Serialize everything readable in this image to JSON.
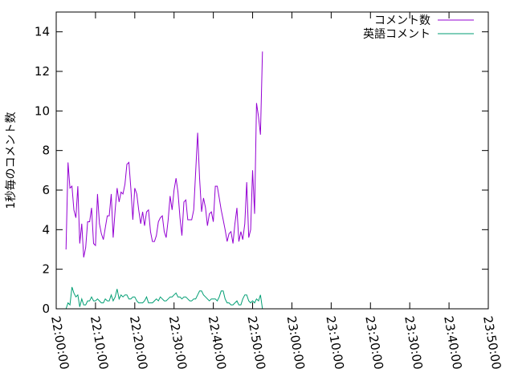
{
  "chart_data": {
    "type": "line",
    "title": "",
    "xlabel": "",
    "ylabel": "1秒毎のコメント数",
    "x_tick_labels": [
      "22:00:00",
      "22:10:00",
      "22:20:00",
      "22:30:00",
      "22:40:00",
      "22:50:00",
      "23:00:00",
      "23:10:00",
      "23:20:00",
      "23:30:00",
      "23:40:00",
      "23:50:00"
    ],
    "x_start": "22:00:00",
    "x_interval_seconds": 30,
    "x_range_minutes": [
      0,
      110
    ],
    "ylim": [
      0,
      15
    ],
    "y_ticks": [
      0,
      2,
      4,
      6,
      8,
      10,
      12,
      14
    ],
    "grid": false,
    "legend_position": "top-right",
    "series": [
      {
        "name": "コメント数",
        "color": "#9400d3",
        "values": [
          3.0,
          7.4,
          6.1,
          6.2,
          5.0,
          4.6,
          6.2,
          3.3,
          4.3,
          2.6,
          3.1,
          4.4,
          4.4,
          5.1,
          3.3,
          3.2,
          5.8,
          4.3,
          3.8,
          3.5,
          4.1,
          4.7,
          4.7,
          5.8,
          3.6,
          5.0,
          6.1,
          5.4,
          5.9,
          5.8,
          6.3,
          7.3,
          7.4,
          6.1,
          4.5,
          6.1,
          5.8,
          5.0,
          4.3,
          4.9,
          4.2,
          4.9,
          5.0,
          3.9,
          3.4,
          3.4,
          3.7,
          4.4,
          4.6,
          4.7,
          3.9,
          3.6,
          4.5,
          5.7,
          5.0,
          6.0,
          6.6,
          5.9,
          4.6,
          3.7,
          5.4,
          5.5,
          4.5,
          4.5,
          4.5,
          5.0,
          6.9,
          8.9,
          6.6,
          4.9,
          5.6,
          5.1,
          4.2,
          4.8,
          4.9,
          4.4,
          6.2,
          6.2,
          5.6,
          5.0,
          4.5,
          4.0,
          3.4,
          3.8,
          3.9,
          3.3,
          4.3,
          5.1,
          3.4,
          3.9,
          3.5,
          4.3,
          6.4,
          3.6,
          4.0,
          7.0,
          4.8,
          10.4,
          9.7,
          8.8,
          13.0
        ]
      },
      {
        "name": "英語コメント",
        "color": "#009e73",
        "values": [
          0.0,
          0.3,
          0.2,
          1.1,
          0.8,
          0.6,
          0.7,
          0.1,
          0.5,
          0.2,
          0.2,
          0.4,
          0.4,
          0.6,
          0.4,
          0.4,
          0.5,
          0.4,
          0.3,
          0.3,
          0.5,
          0.4,
          0.4,
          0.7,
          0.4,
          0.6,
          1.0,
          0.5,
          0.7,
          0.6,
          0.7,
          0.7,
          0.5,
          0.5,
          0.6,
          0.6,
          0.4,
          0.3,
          0.3,
          0.3,
          0.4,
          0.6,
          0.3,
          0.3,
          0.3,
          0.4,
          0.5,
          0.4,
          0.6,
          0.5,
          0.4,
          0.4,
          0.5,
          0.6,
          0.6,
          0.7,
          0.8,
          0.6,
          0.6,
          0.5,
          0.6,
          0.6,
          0.5,
          0.4,
          0.4,
          0.5,
          0.5,
          0.7,
          0.9,
          0.9,
          0.7,
          0.6,
          0.5,
          0.4,
          0.5,
          0.5,
          0.5,
          0.4,
          0.6,
          0.9,
          0.9,
          0.5,
          0.3,
          0.3,
          0.2,
          0.2,
          0.3,
          0.4,
          0.2,
          0.2,
          0.5,
          0.7,
          0.7,
          0.4,
          0.3,
          0.4,
          0.3,
          0.5,
          0.4,
          0.7,
          0.0
        ]
      }
    ]
  }
}
